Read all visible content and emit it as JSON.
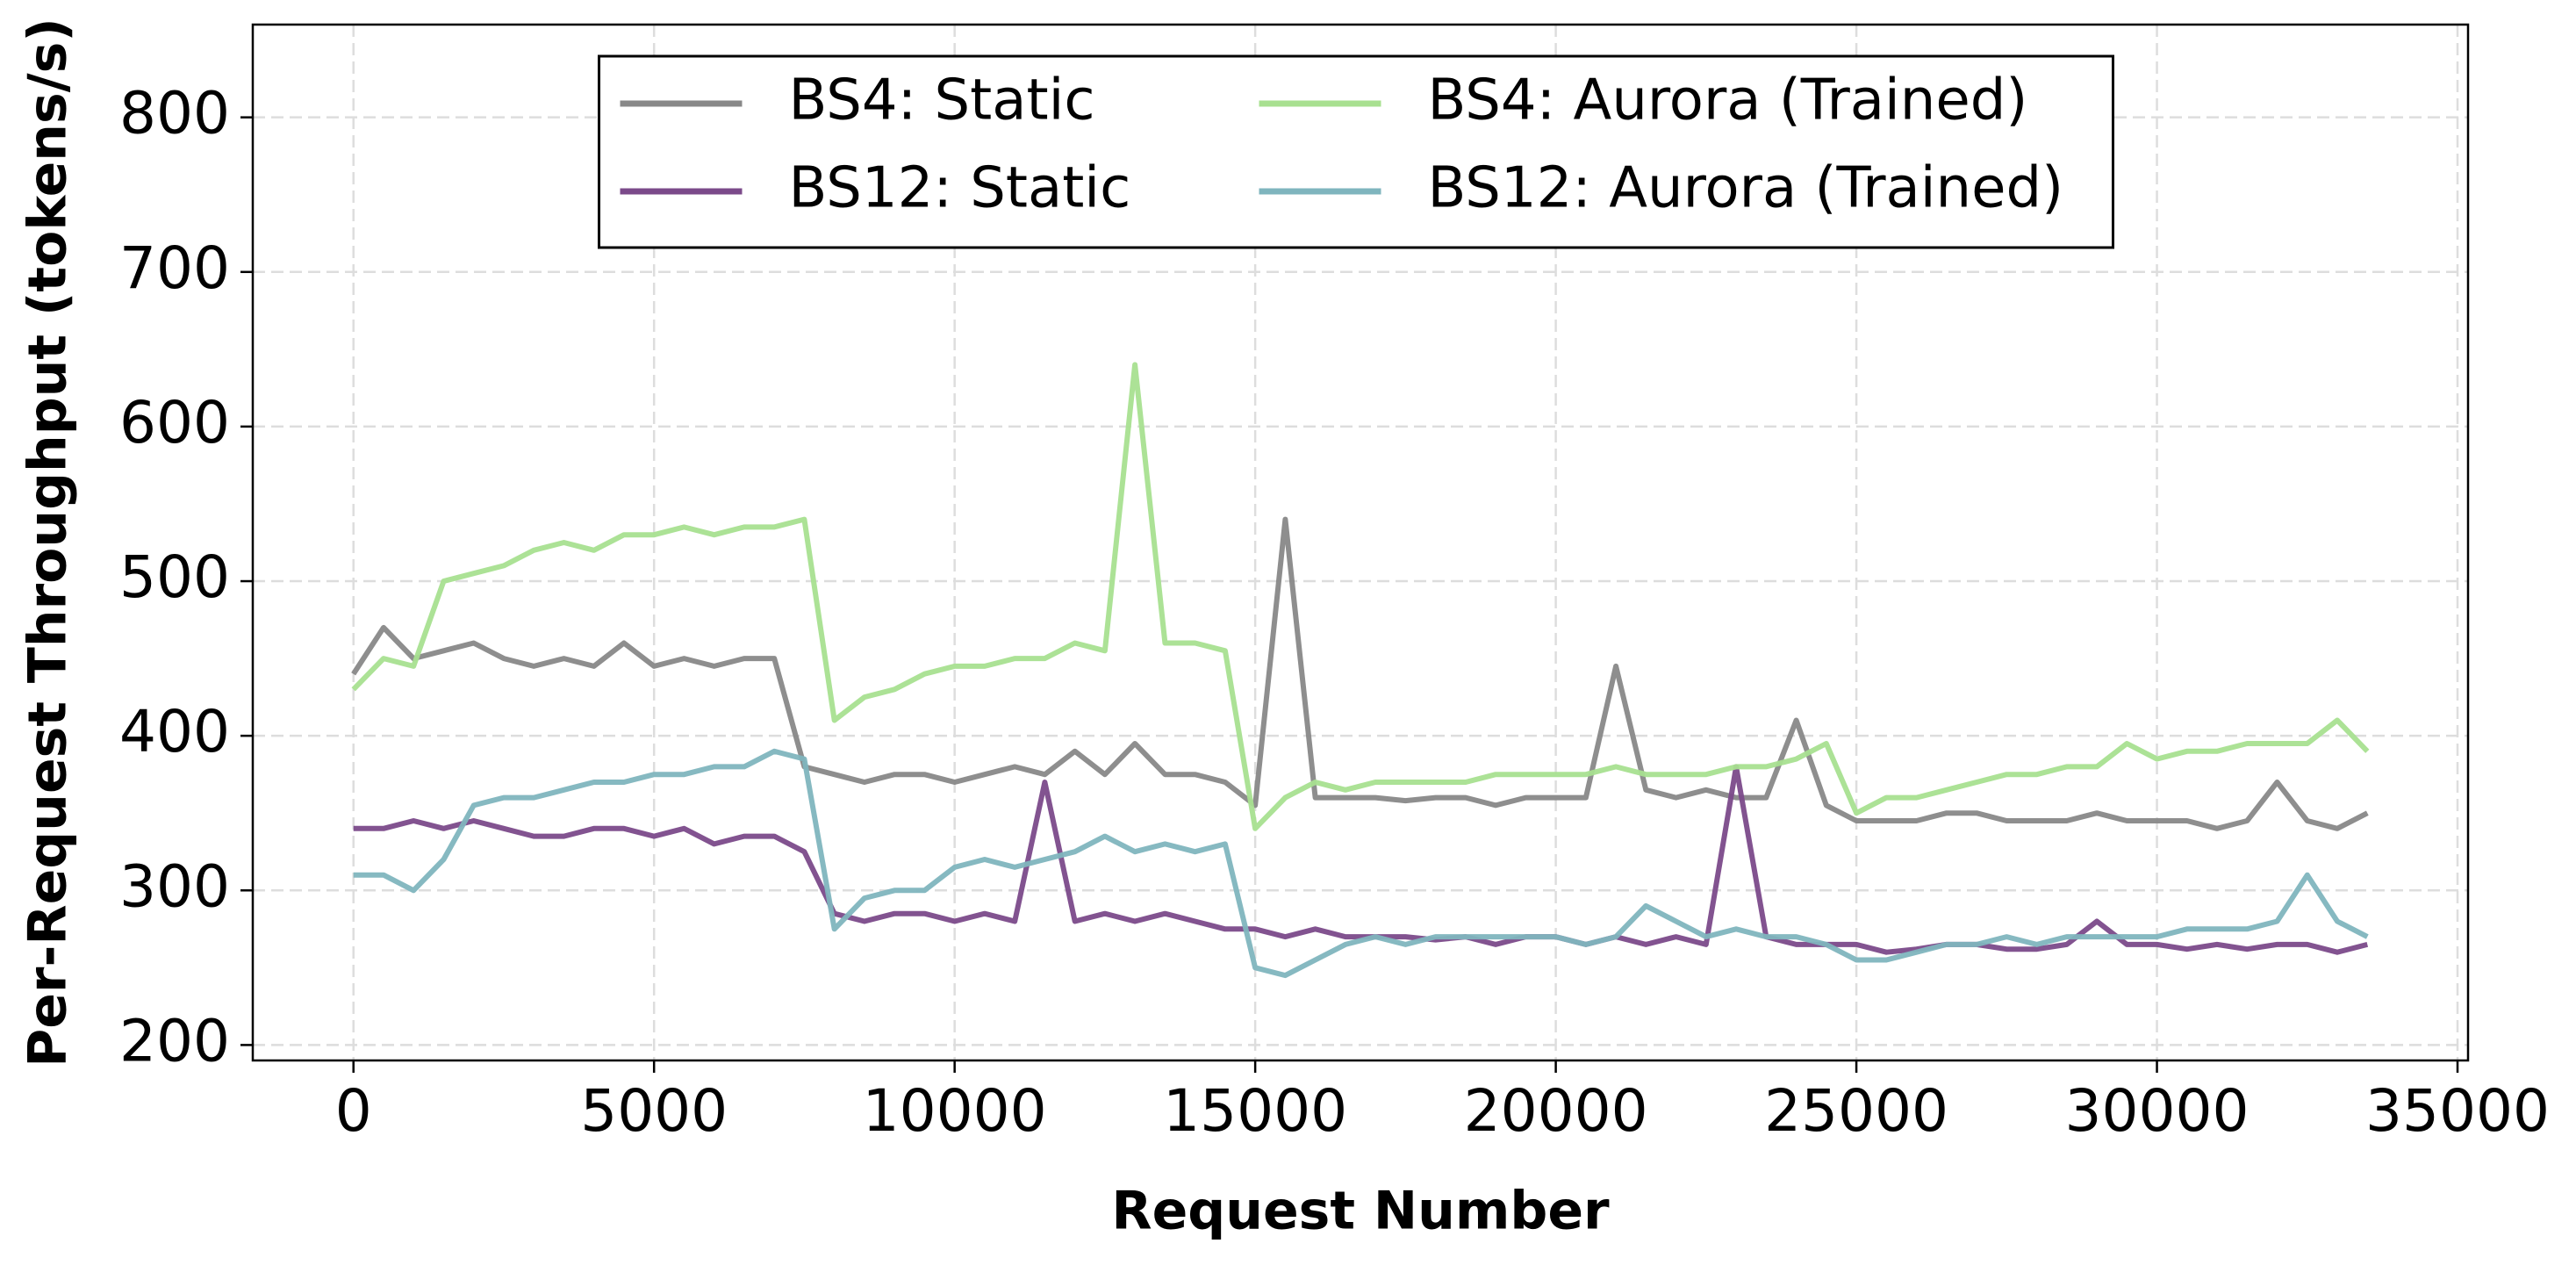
{
  "chart_data": {
    "type": "line",
    "xlabel": "Request Number",
    "ylabel": "Per-Request Throughput (tokens/s)",
    "x": [
      0,
      500,
      1000,
      1500,
      2000,
      2500,
      3000,
      3500,
      4000,
      4500,
      5000,
      5500,
      6000,
      6500,
      7000,
      7500,
      8000,
      8500,
      9000,
      9500,
      10000,
      10500,
      11000,
      11500,
      12000,
      12500,
      13000,
      13500,
      14000,
      14500,
      15000,
      15500,
      16000,
      16500,
      17000,
      17500,
      18000,
      18500,
      19000,
      19500,
      20000,
      20500,
      21000,
      21500,
      22000,
      22500,
      23000,
      23500,
      24000,
      24500,
      25000,
      25500,
      26000,
      26500,
      27000,
      27500,
      28000,
      28500,
      29000,
      29500,
      30000,
      30500,
      31000,
      31500,
      32000,
      32500,
      33000,
      33500
    ],
    "series": [
      {
        "name": "BS4: Static",
        "color": "#888888",
        "values": [
          440,
          470,
          450,
          455,
          460,
          450,
          445,
          450,
          445,
          460,
          445,
          450,
          445,
          450,
          450,
          380,
          375,
          370,
          375,
          375,
          370,
          375,
          380,
          375,
          390,
          375,
          395,
          375,
          375,
          370,
          355,
          540,
          360,
          360,
          360,
          358,
          360,
          360,
          355,
          360,
          360,
          360,
          445,
          365,
          360,
          365,
          360,
          360,
          410,
          355,
          345,
          345,
          345,
          350,
          350,
          345,
          345,
          345,
          350,
          345,
          345,
          345,
          340,
          345,
          370,
          345,
          340,
          350
        ]
      },
      {
        "name": "BS12: Static",
        "color": "#7b4a8a",
        "values": [
          340,
          340,
          345,
          340,
          345,
          340,
          335,
          335,
          340,
          340,
          335,
          340,
          330,
          335,
          335,
          325,
          285,
          280,
          285,
          285,
          280,
          285,
          280,
          370,
          280,
          285,
          280,
          285,
          280,
          275,
          275,
          270,
          275,
          270,
          270,
          270,
          268,
          270,
          265,
          270,
          270,
          265,
          270,
          265,
          270,
          265,
          380,
          270,
          265,
          265,
          265,
          260,
          262,
          265,
          265,
          262,
          262,
          265,
          280,
          265,
          265,
          262,
          265,
          262,
          265,
          265,
          260,
          265
        ]
      },
      {
        "name": "BS4: Aurora (Trained)",
        "color": "#a8e090",
        "values": [
          430,
          450,
          445,
          500,
          505,
          510,
          520,
          525,
          520,
          530,
          530,
          535,
          530,
          535,
          535,
          540,
          410,
          425,
          430,
          440,
          445,
          445,
          450,
          450,
          460,
          455,
          640,
          460,
          460,
          455,
          340,
          360,
          370,
          365,
          370,
          370,
          370,
          370,
          375,
          375,
          375,
          375,
          380,
          375,
          375,
          375,
          380,
          380,
          385,
          395,
          350,
          360,
          360,
          365,
          370,
          375,
          375,
          380,
          380,
          395,
          385,
          390,
          390,
          395,
          395,
          395,
          410,
          390
        ]
      },
      {
        "name": "BS12: Aurora (Trained)",
        "color": "#7fb5be",
        "values": [
          310,
          310,
          300,
          320,
          355,
          360,
          360,
          365,
          370,
          370,
          375,
          375,
          380,
          380,
          390,
          385,
          275,
          295,
          300,
          300,
          315,
          320,
          315,
          320,
          325,
          335,
          325,
          330,
          325,
          330,
          250,
          245,
          255,
          265,
          270,
          265,
          270,
          270,
          270,
          270,
          270,
          265,
          270,
          290,
          280,
          270,
          275,
          270,
          270,
          265,
          255,
          255,
          260,
          265,
          265,
          270,
          265,
          270,
          270,
          270,
          270,
          275,
          275,
          275,
          280,
          310,
          280,
          270
        ]
      }
    ],
    "xlim": [
      -1675,
      35175
    ],
    "ylim": [
      190,
      860
    ],
    "xticks": [
      0,
      5000,
      10000,
      15000,
      20000,
      25000,
      30000,
      35000
    ],
    "yticks": [
      200,
      300,
      400,
      500,
      600,
      700,
      800
    ],
    "grid": true,
    "legend": "upper center"
  }
}
